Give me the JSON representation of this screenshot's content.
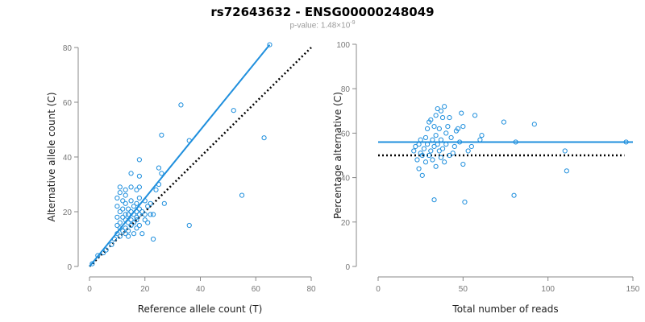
{
  "title": "rs72643632 - ENSG00000248049",
  "subtitle": {
    "prefix": "p-value: 1.48×10",
    "exponent": "-9"
  },
  "colors": {
    "points": "#1f8fdd",
    "fit_line": "#1f8fdd",
    "reference_line": "#000000",
    "axis": "#888888"
  },
  "chart_data": [
    {
      "type": "scatter",
      "xlabel": "Reference allele count (T)",
      "ylabel": "Alternative allele count (C)",
      "xlim": [
        0,
        80
      ],
      "ylim": [
        0,
        80
      ],
      "xticks": [
        0,
        20,
        40,
        60,
        80
      ],
      "yticks": [
        0,
        20,
        40,
        60,
        80
      ],
      "grid": false,
      "points": [
        [
          1,
          1
        ],
        [
          3,
          4
        ],
        [
          5,
          5
        ],
        [
          6,
          6
        ],
        [
          8,
          8
        ],
        [
          9,
          10
        ],
        [
          10,
          12
        ],
        [
          10,
          15
        ],
        [
          10,
          18
        ],
        [
          10,
          22
        ],
        [
          10,
          25
        ],
        [
          11,
          11
        ],
        [
          11,
          14
        ],
        [
          11,
          16
        ],
        [
          11,
          20
        ],
        [
          11,
          27
        ],
        [
          11,
          29
        ],
        [
          12,
          13
        ],
        [
          12,
          18
        ],
        [
          12,
          21
        ],
        [
          12,
          24
        ],
        [
          13,
          12
        ],
        [
          13,
          14
        ],
        [
          13,
          17
        ],
        [
          13,
          19
        ],
        [
          13,
          23
        ],
        [
          13,
          26
        ],
        [
          13,
          28
        ],
        [
          14,
          11
        ],
        [
          14,
          13
        ],
        [
          14,
          16
        ],
        [
          14,
          19
        ],
        [
          14,
          21
        ],
        [
          15,
          15
        ],
        [
          15,
          17
        ],
        [
          15,
          20
        ],
        [
          15,
          24
        ],
        [
          15,
          29
        ],
        [
          15,
          34
        ],
        [
          16,
          12
        ],
        [
          16,
          16
        ],
        [
          16,
          19
        ],
        [
          16,
          22
        ],
        [
          17,
          14
        ],
        [
          17,
          17
        ],
        [
          17,
          18
        ],
        [
          17,
          20
        ],
        [
          17,
          23
        ],
        [
          17,
          28
        ],
        [
          18,
          15
        ],
        [
          18,
          19
        ],
        [
          18,
          21
        ],
        [
          18,
          25
        ],
        [
          18,
          29
        ],
        [
          18,
          33
        ],
        [
          18,
          39
        ],
        [
          19,
          12
        ],
        [
          19,
          20
        ],
        [
          20,
          17
        ],
        [
          20,
          19
        ],
        [
          20,
          24
        ],
        [
          21,
          16
        ],
        [
          21,
          22
        ],
        [
          22,
          19
        ],
        [
          22,
          23
        ],
        [
          23,
          10
        ],
        [
          23,
          19
        ],
        [
          24,
          28
        ],
        [
          25,
          30
        ],
        [
          25,
          36
        ],
        [
          26,
          34
        ],
        [
          26,
          48
        ],
        [
          27,
          23
        ],
        [
          33,
          59
        ],
        [
          36,
          15
        ],
        [
          36,
          46
        ],
        [
          52,
          57
        ],
        [
          55,
          26
        ],
        [
          63,
          47
        ],
        [
          65,
          81
        ]
      ],
      "fit_line": [
        [
          0,
          0
        ],
        [
          65,
          81
        ]
      ],
      "reference_line": [
        [
          0,
          0
        ],
        [
          80,
          80
        ]
      ]
    },
    {
      "type": "scatter",
      "xlabel": "Total number of reads",
      "ylabel": "Percentage alternative (C)",
      "xlim": [
        0,
        150
      ],
      "ylim": [
        0,
        100
      ],
      "xticks": [
        0,
        50,
        100,
        150
      ],
      "yticks": [
        0,
        20,
        40,
        60,
        80,
        100
      ],
      "grid": false,
      "points": [
        [
          21,
          52
        ],
        [
          22,
          54
        ],
        [
          23,
          48
        ],
        [
          24,
          55
        ],
        [
          24,
          44
        ],
        [
          25,
          51
        ],
        [
          25,
          57
        ],
        [
          26,
          41
        ],
        [
          26,
          50
        ],
        [
          27,
          53
        ],
        [
          28,
          58
        ],
        [
          28,
          47
        ],
        [
          29,
          55
        ],
        [
          29,
          62
        ],
        [
          30,
          65
        ],
        [
          30,
          50
        ],
        [
          31,
          66
        ],
        [
          31,
          52
        ],
        [
          32,
          57
        ],
        [
          32,
          48
        ],
        [
          33,
          54
        ],
        [
          33,
          63
        ],
        [
          33,
          30
        ],
        [
          34,
          68
        ],
        [
          34,
          59
        ],
        [
          34,
          45
        ],
        [
          35,
          71
        ],
        [
          35,
          55
        ],
        [
          36,
          52
        ],
        [
          36,
          62
        ],
        [
          37,
          70
        ],
        [
          37,
          57
        ],
        [
          37,
          49
        ],
        [
          38,
          67
        ],
        [
          38,
          53
        ],
        [
          39,
          72
        ],
        [
          39,
          47
        ],
        [
          40,
          60
        ],
        [
          40,
          55
        ],
        [
          41,
          63
        ],
        [
          42,
          50
        ],
        [
          42,
          67
        ],
        [
          43,
          58
        ],
        [
          44,
          51
        ],
        [
          45,
          54
        ],
        [
          46,
          61
        ],
        [
          47,
          62
        ],
        [
          48,
          56
        ],
        [
          49,
          69
        ],
        [
          50,
          46
        ],
        [
          50,
          63
        ],
        [
          51,
          29
        ],
        [
          53,
          52
        ],
        [
          55,
          54
        ],
        [
          57,
          68
        ],
        [
          60,
          57
        ],
        [
          61,
          59
        ],
        [
          74,
          65
        ],
        [
          80,
          32
        ],
        [
          81,
          56
        ],
        [
          92,
          64
        ],
        [
          110,
          52
        ],
        [
          111,
          43
        ],
        [
          146,
          56
        ]
      ],
      "fit_line": [
        [
          0,
          56
        ],
        [
          150,
          56
        ]
      ],
      "reference_line": [
        [
          0,
          50
        ],
        [
          145,
          50
        ]
      ]
    }
  ]
}
